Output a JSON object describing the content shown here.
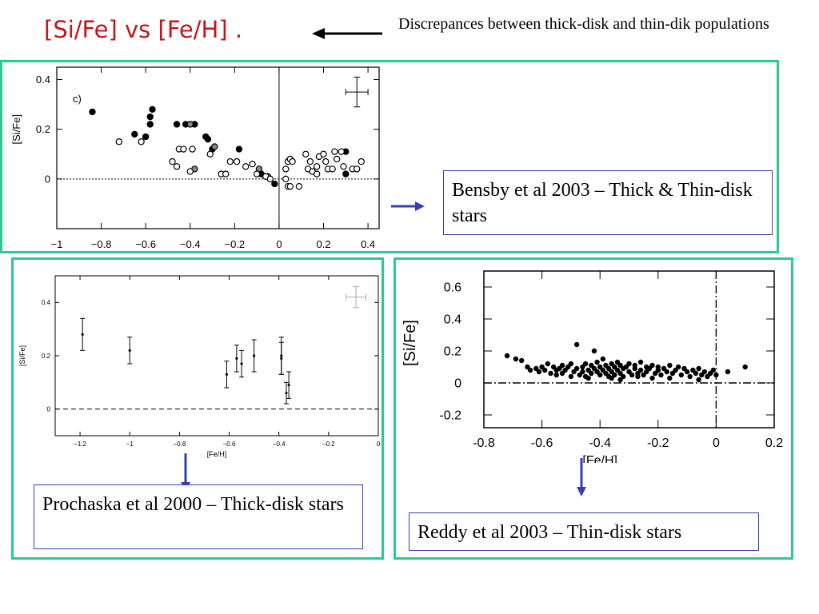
{
  "slide": {
    "title": "[Si/Fe] vs [Fe/H] .",
    "note": "Discrepances between thick-disk and thin-dik populations"
  },
  "captions": {
    "bensby": "Bensby et al 2003 – Thick & Thin-disk stars",
    "prochaska": "Prochaska et al 2000 – Thick-disk stars",
    "reddy": "Reddy et al 2003 – Thin-disk stars"
  },
  "colors": {
    "panel_border": "#2ec796",
    "caption_border": "#3340b4",
    "arrow": "#3340b4",
    "title": "#c0161c"
  },
  "chart_data": [
    {
      "id": "bensby",
      "type": "scatter",
      "panel_label": "c)",
      "ylabel": "[Si/Fe]",
      "xlim": [
        -1,
        0.45
      ],
      "ylim": [
        -0.2,
        0.45
      ],
      "xticks": [
        "−1",
        "−0.8",
        "−0.6",
        "−0.4",
        "−0.2",
        "0",
        "0.2",
        "0.4"
      ],
      "xtick_values": [
        -1,
        -0.8,
        -0.6,
        -0.4,
        -0.2,
        0,
        0.2,
        0.4
      ],
      "yticks": [
        "0",
        "0.2",
        "0.4"
      ],
      "ytick_values": [
        0,
        0.2,
        0.4
      ],
      "series": [
        {
          "marker": "filled",
          "x": [
            -0.84,
            -0.65,
            -0.6,
            -0.58,
            -0.58,
            -0.57,
            -0.46,
            -0.42,
            -0.38,
            -0.33,
            -0.32,
            -0.3,
            -0.18,
            -0.08,
            -0.02,
            0.3,
            0.3
          ],
          "y": [
            0.27,
            0.18,
            0.17,
            0.22,
            0.25,
            0.28,
            0.22,
            0.22,
            0.22,
            0.17,
            0.16,
            0.12,
            0.12,
            0.02,
            -0.02,
            0.02,
            0.11
          ]
        },
        {
          "marker": "gray",
          "x": [
            -0.4,
            -0.38,
            -0.29,
            -0.09,
            -0.05
          ],
          "y": [
            0.22,
            0.04,
            0.13,
            0.04,
            0.01
          ]
        },
        {
          "marker": "open",
          "x": [
            -0.72,
            -0.62,
            -0.48,
            -0.46,
            -0.45,
            -0.43,
            -0.4,
            -0.39,
            -0.31,
            -0.26,
            -0.24,
            -0.22,
            -0.19,
            -0.15,
            -0.12,
            -0.1,
            -0.06,
            -0.04,
            0.03,
            0.03,
            0.04,
            0.04,
            0.05,
            0.05,
            0.06,
            0.09,
            0.12,
            0.13,
            0.14,
            0.15,
            0.17,
            0.17,
            0.18,
            0.2,
            0.21,
            0.22,
            0.24,
            0.25,
            0.26,
            0.28,
            0.29,
            0.33,
            0.35,
            0.37
          ],
          "y": [
            0.15,
            0.15,
            0.07,
            0.05,
            0.12,
            0.12,
            0.03,
            0.12,
            0.1,
            0.02,
            0.02,
            0.07,
            0.07,
            0.05,
            0.06,
            0.02,
            0.01,
            0.0,
            0.0,
            0.04,
            0.07,
            -0.03,
            -0.03,
            0.08,
            0.07,
            -0.03,
            0.1,
            0.04,
            0.07,
            0.03,
            0.05,
            0.02,
            0.09,
            0.1,
            0.07,
            0.04,
            0.04,
            0.11,
            0.08,
            0.11,
            0.05,
            0.04,
            0.04,
            0.07
          ]
        }
      ],
      "error_bar": {
        "x": 0.35,
        "y": 0.35,
        "dx": 0.05,
        "dy": 0.06
      }
    },
    {
      "id": "prochaska",
      "type": "scatter",
      "xlabel": "[Fe/H]",
      "ylabel": "[Si/Fe]",
      "xlim": [
        -1.3,
        0.0
      ],
      "ylim": [
        -0.1,
        0.5
      ],
      "xticks": [
        "−1.2",
        "−1",
        "−0.8",
        "−0.6",
        "−0.4",
        "−0.2",
        "0"
      ],
      "xtick_values": [
        -1.2,
        -1.0,
        -0.8,
        -0.6,
        -0.4,
        -0.2,
        0.0
      ],
      "yticks": [
        "0",
        "0.2",
        "0.4"
      ],
      "ytick_values": [
        0,
        0.2,
        0.4
      ],
      "points": [
        {
          "x": -1.19,
          "y": 0.28,
          "err": 0.06
        },
        {
          "x": -1.0,
          "y": 0.22,
          "err": 0.05
        },
        {
          "x": -0.61,
          "y": 0.13,
          "err": 0.05
        },
        {
          "x": -0.57,
          "y": 0.19,
          "err": 0.05
        },
        {
          "x": -0.55,
          "y": 0.17,
          "err": 0.05
        },
        {
          "x": -0.5,
          "y": 0.2,
          "err": 0.06
        },
        {
          "x": -0.39,
          "y": 0.2,
          "err": 0.07
        },
        {
          "x": -0.39,
          "y": 0.19,
          "err": 0.06
        },
        {
          "x": -0.37,
          "y": 0.06,
          "err": 0.04
        },
        {
          "x": -0.36,
          "y": 0.09,
          "err": 0.05
        }
      ],
      "error_bar": {
        "x": -0.09,
        "y": 0.42,
        "dx": 0.04,
        "dy": 0.04
      }
    },
    {
      "id": "reddy",
      "type": "scatter",
      "xlabel": "[Fe/H]",
      "ylabel": "[Si/Fe]",
      "xlim": [
        -0.8,
        0.2
      ],
      "ylim": [
        -0.28,
        0.7
      ],
      "xticks": [
        "-0.8",
        "-0.6",
        "-0.4",
        "-0.2",
        "0",
        "0.2"
      ],
      "xtick_values": [
        -0.8,
        -0.6,
        -0.4,
        -0.2,
        0,
        0.2
      ],
      "yticks": [
        "-0.2",
        "0",
        "0.2",
        "0.4",
        "0.6"
      ],
      "ytick_values": [
        -0.2,
        0,
        0.2,
        0.4,
        0.6
      ],
      "x": [
        -0.72,
        -0.69,
        -0.67,
        -0.65,
        -0.64,
        -0.62,
        -0.61,
        -0.6,
        -0.59,
        -0.58,
        -0.57,
        -0.56,
        -0.55,
        -0.55,
        -0.54,
        -0.53,
        -0.53,
        -0.52,
        -0.51,
        -0.5,
        -0.5,
        -0.49,
        -0.48,
        -0.48,
        -0.47,
        -0.46,
        -0.46,
        -0.45,
        -0.45,
        -0.44,
        -0.43,
        -0.43,
        -0.42,
        -0.42,
        -0.41,
        -0.41,
        -0.4,
        -0.4,
        -0.39,
        -0.39,
        -0.38,
        -0.38,
        -0.37,
        -0.37,
        -0.36,
        -0.36,
        -0.35,
        -0.35,
        -0.34,
        -0.34,
        -0.33,
        -0.33,
        -0.32,
        -0.32,
        -0.31,
        -0.3,
        -0.3,
        -0.29,
        -0.28,
        -0.28,
        -0.27,
        -0.26,
        -0.26,
        -0.25,
        -0.24,
        -0.24,
        -0.23,
        -0.22,
        -0.21,
        -0.2,
        -0.2,
        -0.19,
        -0.18,
        -0.17,
        -0.16,
        -0.15,
        -0.14,
        -0.13,
        -0.12,
        -0.11,
        -0.1,
        -0.09,
        -0.08,
        -0.07,
        -0.06,
        -0.05,
        -0.04,
        -0.03,
        -0.02,
        -0.01,
        0.0,
        0.04,
        0.1,
        -0.44,
        -0.33,
        -0.27,
        -0.16,
        -0.06,
        -0.36,
        -0.22
      ],
      "y": [
        0.17,
        0.15,
        0.14,
        0.1,
        0.08,
        0.09,
        0.07,
        0.1,
        0.08,
        0.12,
        0.06,
        0.1,
        0.08,
        0.05,
        0.09,
        0.11,
        0.06,
        0.08,
        0.1,
        0.04,
        0.12,
        0.07,
        0.24,
        0.09,
        0.05,
        0.1,
        0.07,
        0.12,
        0.04,
        0.08,
        0.11,
        0.06,
        0.09,
        0.2,
        0.07,
        0.13,
        0.05,
        0.1,
        0.08,
        0.15,
        0.06,
        0.11,
        0.04,
        0.09,
        0.12,
        0.07,
        0.1,
        0.05,
        0.08,
        0.13,
        0.06,
        0.11,
        0.09,
        0.04,
        0.1,
        0.07,
        0.12,
        0.05,
        0.09,
        0.11,
        0.06,
        0.08,
        0.13,
        0.05,
        0.1,
        0.07,
        0.09,
        0.11,
        0.06,
        0.08,
        0.1,
        0.05,
        0.09,
        0.07,
        0.11,
        0.06,
        0.08,
        0.1,
        0.05,
        0.09,
        0.07,
        0.04,
        0.08,
        0.06,
        0.09,
        0.05,
        0.07,
        0.04,
        0.06,
        0.08,
        0.05,
        0.07,
        0.1,
        0.03,
        0.02,
        0.04,
        0.03,
        0.02,
        0.03,
        0.03
      ]
    }
  ]
}
